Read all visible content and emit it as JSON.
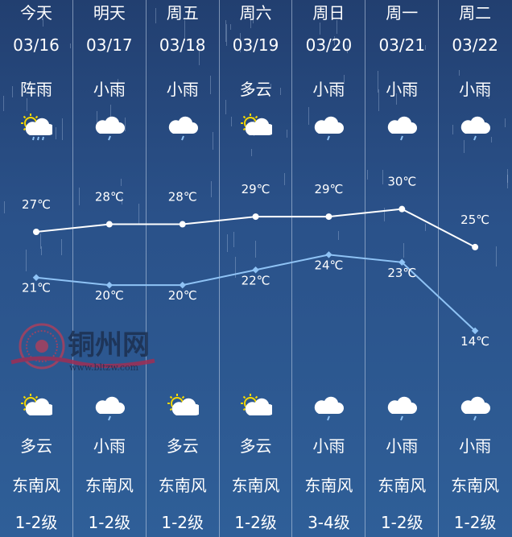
{
  "days": [
    {
      "day": "今天",
      "date": "03/16",
      "day_weather": "阵雨",
      "day_icon": "sun-cloud-rain-icon",
      "high": 27,
      "high_label": "27℃",
      "low": 21,
      "low_label": "21℃",
      "night_icon": "sun-cloud-icon",
      "night_weather": "多云",
      "wind_dir": "东南风",
      "wind_level": "1-2级"
    },
    {
      "day": "明天",
      "date": "03/17",
      "day_weather": "小雨",
      "day_icon": "cloud-rain-icon",
      "high": 28,
      "high_label": "28℃",
      "low": 20,
      "low_label": "20℃",
      "night_icon": "cloud-rain-icon",
      "night_weather": "小雨",
      "wind_dir": "东南风",
      "wind_level": "1-2级"
    },
    {
      "day": "周五",
      "date": "03/18",
      "day_weather": "小雨",
      "day_icon": "cloud-rain-icon",
      "high": 28,
      "high_label": "28℃",
      "low": 20,
      "low_label": "20℃",
      "night_icon": "sun-cloud-icon",
      "night_weather": "多云",
      "wind_dir": "东南风",
      "wind_level": "1-2级"
    },
    {
      "day": "周六",
      "date": "03/19",
      "day_weather": "多云",
      "day_icon": "sun-cloud-icon",
      "high": 29,
      "high_label": "29℃",
      "low": 22,
      "low_label": "22℃",
      "night_icon": "sun-cloud-icon",
      "night_weather": "多云",
      "wind_dir": "东南风",
      "wind_level": "1-2级"
    },
    {
      "day": "周日",
      "date": "03/20",
      "day_weather": "小雨",
      "day_icon": "cloud-rain-icon",
      "high": 29,
      "high_label": "29℃",
      "low": 24,
      "low_label": "24℃",
      "night_icon": "cloud-rain-icon",
      "night_weather": "小雨",
      "wind_dir": "东南风",
      "wind_level": "3-4级"
    },
    {
      "day": "周一",
      "date": "03/21",
      "day_weather": "小雨",
      "day_icon": "cloud-rain-icon",
      "high": 30,
      "high_label": "30℃",
      "low": 23,
      "low_label": "23℃",
      "night_icon": "cloud-rain-icon",
      "night_weather": "小雨",
      "wind_dir": "东南风",
      "wind_level": "1-2级"
    },
    {
      "day": "周二",
      "date": "03/22",
      "day_weather": "小雨",
      "day_icon": "cloud-rain-icon",
      "high": 25,
      "high_label": "25℃",
      "low": 14,
      "low_label": "14℃",
      "night_icon": "cloud-rain-icon",
      "night_weather": "小雨",
      "wind_dir": "东南风",
      "wind_level": "1-2级"
    }
  ],
  "colors": {
    "high_line": "#ffffff",
    "low_line": "#8fc3f5",
    "sun": "#f5d800",
    "cloud": "#ffffff",
    "rain": "#8fc3f5"
  },
  "watermark": {
    "name": "铜州网",
    "url": "www.bltzw.com"
  }
}
